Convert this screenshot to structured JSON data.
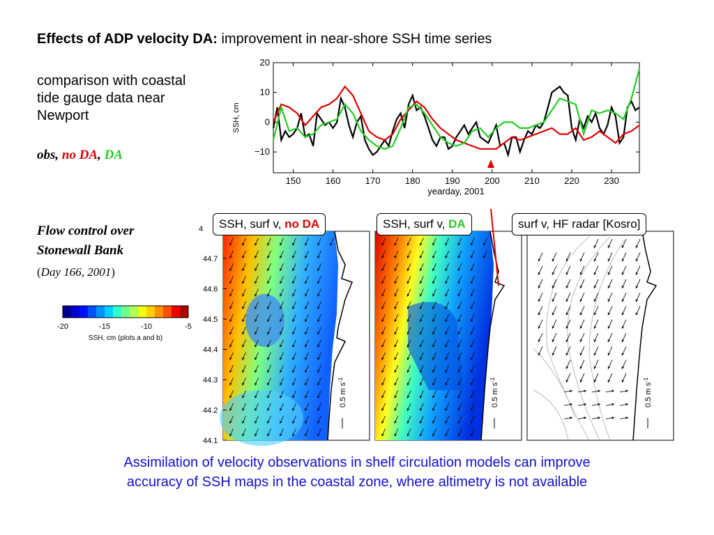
{
  "title": {
    "bold": "Effects of ADP velocity DA:",
    "normal": "improvement in near-shore SSH time series"
  },
  "comparison_text": [
    "comparison with coastal",
    "tide gauge data near",
    "Newport"
  ],
  "legend_text": {
    "obs": "obs,",
    "nods": "no DA",
    "sep": ",",
    "da": "DA",
    "obs_color": "#000000",
    "noda_color": "#e00000",
    "da_color": "#22cc22"
  },
  "flow_title": [
    "Flow control over",
    "Stonewall Bank"
  ],
  "day_label": {
    "open": "(",
    "text": "Day 166, 2001",
    "close": ")"
  },
  "colorbar": {
    "label": "SSH, cm (plots a and b)",
    "ticks": [
      "-20",
      "-15",
      "-10",
      "-5"
    ],
    "colors": [
      "#00008f",
      "#0000cf",
      "#0010ff",
      "#0050ff",
      "#0090ff",
      "#00d0ff",
      "#30ffcf",
      "#70ff8f",
      "#b0ff50",
      "#f0ff10",
      "#ffd000",
      "#ff9000",
      "#ff5000",
      "#ef0000",
      "#af0000"
    ]
  },
  "panel_labels": [
    {
      "prefix": "SSH, surf v, ",
      "highlight": "no DA",
      "color": "#e00000"
    },
    {
      "prefix": "SSH, surf v, ",
      "highlight": "DA",
      "color": "#22cc22"
    },
    {
      "prefix": "surf v, HF radar [Kosro]",
      "highlight": "",
      "color": "#000000"
    }
  ],
  "map_lat_ticks": [
    "44.7",
    "44.6",
    "44.5",
    "44.4",
    "44.3",
    "44.2",
    "44.1"
  ],
  "map_lat_top_partial": "4",
  "scale_label": "0.5 m s",
  "scale_sup": "-1",
  "footer": [
    "Assimilation of velocity observations in shelf circulation models can improve",
    "accuracy of SSH maps in the coastal zone, where altimetry is not available"
  ],
  "chart_data": {
    "type": "line",
    "title": "",
    "xlabel": "yearday, 2001",
    "ylabel": "SSH, cm",
    "xlim": [
      145,
      237
    ],
    "ylim": [
      -17,
      20
    ],
    "xticks": [
      150,
      160,
      170,
      180,
      190,
      200,
      210,
      220,
      230
    ],
    "yticks": [
      20,
      10,
      0,
      -10
    ],
    "grid": false,
    "series": [
      {
        "name": "obs",
        "color": "#000000",
        "x": [
          145,
          146,
          147,
          148,
          149,
          150,
          151,
          152,
          153,
          154,
          155,
          156,
          157,
          158,
          159,
          160,
          161,
          162,
          163,
          164,
          165,
          166,
          167,
          168,
          169,
          170,
          171,
          172,
          173,
          174,
          175,
          176,
          177,
          178,
          179,
          180,
          181,
          182,
          183,
          184,
          185,
          186,
          187,
          188,
          189,
          190,
          191,
          192,
          193,
          194,
          195,
          196,
          197,
          198,
          199,
          200,
          201,
          202,
          203,
          204,
          205,
          206,
          207,
          208,
          209,
          210,
          211,
          212,
          213,
          214,
          215,
          216,
          217,
          218,
          219,
          220,
          221,
          222,
          223,
          224,
          225,
          226,
          227,
          228,
          229,
          230,
          231,
          232,
          233,
          234,
          235,
          236,
          237
        ],
        "y": [
          -2,
          5,
          -6,
          -3,
          -5,
          -4,
          -2,
          3,
          -5,
          -4,
          -8,
          3,
          1,
          -1,
          0,
          -2,
          0,
          8,
          5,
          -1,
          -5,
          0,
          2,
          -6,
          -9,
          -11,
          -10,
          -8,
          -6,
          -8,
          -3,
          1,
          3,
          -2,
          6,
          9,
          4,
          5,
          2,
          -2,
          -6,
          -8,
          -5,
          -5,
          -9,
          -8,
          -5,
          -3,
          -1,
          -4,
          -2,
          0,
          -5,
          -6,
          -7,
          -4,
          -1,
          -8,
          -7,
          -11,
          -5,
          -5,
          -10,
          -6,
          -3,
          -4,
          -1,
          -2,
          0,
          5,
          10,
          11,
          12,
          10,
          9,
          -2,
          -6,
          1,
          -2,
          2,
          0,
          3,
          -2,
          -4,
          -1,
          5,
          2,
          -7,
          -5,
          5,
          7,
          4,
          5
        ]
      },
      {
        "name": "no DA",
        "color": "#e00000",
        "x": [
          145,
          147,
          149,
          151,
          153,
          155,
          157,
          159,
          161,
          163,
          165,
          167,
          169,
          171,
          173,
          175,
          177,
          179,
          181,
          183,
          185,
          187,
          189,
          191,
          193,
          195,
          197,
          199,
          201,
          203,
          205,
          207,
          209,
          211,
          213,
          215,
          217,
          219,
          221,
          223,
          225,
          227,
          229,
          231,
          233,
          235,
          237
        ],
        "y": [
          0,
          6,
          5,
          3,
          -1,
          2,
          5,
          6,
          8,
          12,
          9,
          3,
          -3,
          -5,
          -6,
          -4,
          1,
          4,
          7,
          5,
          1,
          -2,
          -4,
          -6,
          -7,
          -8,
          -9,
          -9,
          -9,
          -7,
          -5,
          -6,
          -5,
          -4,
          -3,
          -2,
          -4,
          -4,
          -2,
          -6,
          -5,
          -3,
          -5,
          -7,
          -4,
          -3,
          -1
        ]
      },
      {
        "name": "DA",
        "color": "#22cc22",
        "x": [
          145,
          147,
          149,
          151,
          153,
          155,
          157,
          159,
          161,
          163,
          165,
          167,
          169,
          171,
          173,
          175,
          177,
          179,
          181,
          183,
          185,
          187,
          189,
          191,
          193,
          195,
          197,
          199,
          201,
          203,
          205,
          207,
          209,
          211,
          213,
          215,
          217,
          219,
          221,
          223,
          225,
          227,
          229,
          231,
          233,
          235,
          237
        ],
        "y": [
          -6,
          5,
          -3,
          -2,
          -5,
          -4,
          -1,
          0,
          1,
          6,
          3,
          -3,
          -6,
          -8,
          -9,
          -8,
          -2,
          5,
          6,
          3,
          -1,
          -5,
          -7,
          -8,
          -7,
          -3,
          -2,
          -5,
          -2,
          0,
          0,
          -2,
          -2,
          -1,
          0,
          4,
          8,
          7,
          6,
          -4,
          4,
          3,
          4,
          3,
          1,
          8,
          18
        ]
      }
    ]
  }
}
